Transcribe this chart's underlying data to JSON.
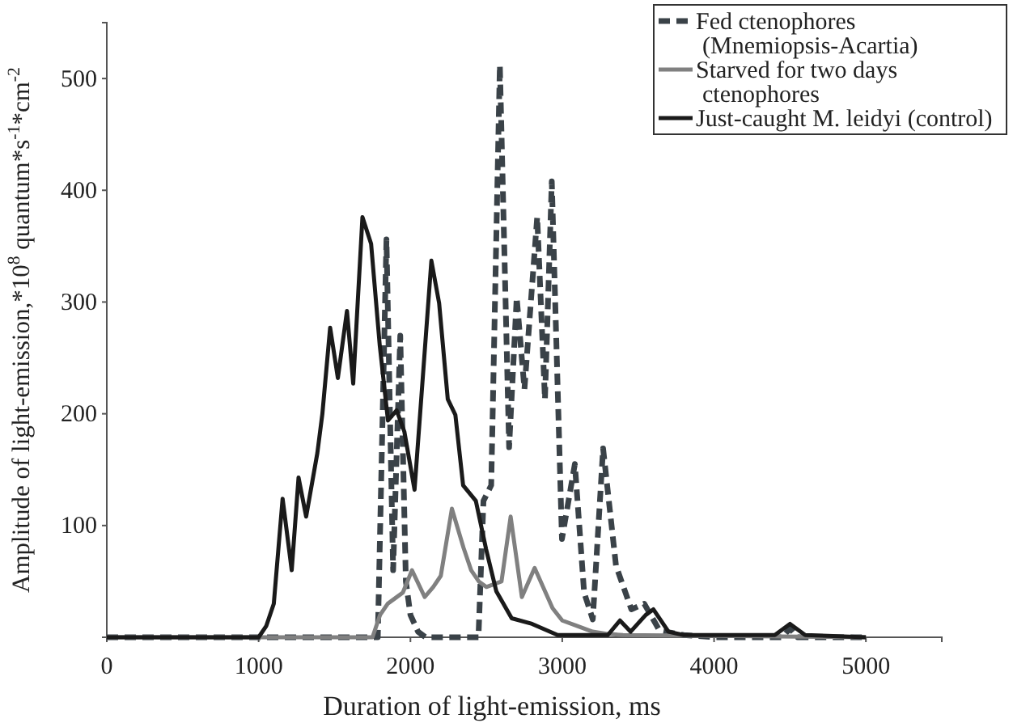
{
  "chart_data": {
    "type": "line",
    "xlabel": "Duration of light-emission, ms",
    "ylabel": "Amplitude of light-emission,*10$^{8}$ quantum*s$^{-1}$*cm$^{-2}$",
    "xlim": [
      0,
      5500
    ],
    "xticks": [
      0,
      1000,
      2000,
      3000,
      4000,
      5000
    ],
    "ylim": [
      0,
      550
    ],
    "yticks": [
      {
        "value": 0,
        "label": null
      },
      100,
      200,
      300,
      400,
      500
    ],
    "grid": false,
    "legend": "top right",
    "series": [
      {
        "name": "Fed ctenophores (Mnemiopsis-Acartia)",
        "color": "#3a4248",
        "line_style": "dashed",
        "x": [
          0,
          1000,
          1785,
          1842,
          1886,
          1933,
          1970,
          2000,
          2050,
          2100,
          2448,
          2481,
          2532,
          2589,
          2650,
          2700,
          2751,
          2785,
          2835,
          2886,
          2931,
          2998,
          3083,
          3144,
          3201,
          3269,
          3354,
          3455,
          3540,
          3641,
          3800,
          4000,
          4450,
          4500,
          4550,
          5000
        ],
        "values": [
          0,
          0,
          0,
          356,
          60,
          270,
          50,
          20,
          5,
          0,
          0,
          122,
          136,
          512,
          170,
          304,
          222,
          285,
          376,
          213,
          408,
          88,
          155,
          40,
          16,
          169,
          64,
          25,
          30,
          6,
          2,
          0,
          0,
          8,
          0,
          0
        ]
      },
      {
        "name": "Starved for two days ctenophores",
        "color": "#808080",
        "line_style": "solid",
        "x": [
          0,
          1000,
          1750,
          1800,
          1850,
          1900,
          1950,
          2010,
          2094,
          2150,
          2200,
          2273,
          2350,
          2400,
          2450,
          2500,
          2600,
          2660,
          2734,
          2818,
          2936,
          3000,
          3100,
          3200,
          3300,
          3400,
          5000
        ],
        "values": [
          0,
          0,
          0,
          20,
          30,
          35,
          40,
          60,
          36,
          45,
          55,
          115,
          80,
          60,
          50,
          45,
          50,
          108,
          36,
          62,
          26,
          15,
          10,
          5,
          3,
          2,
          0
        ]
      },
      {
        "name": "Just-caught M. leidyi (control)",
        "color": "#1a1a1a",
        "line_style": "solid",
        "x": [
          0,
          1000,
          1050,
          1100,
          1158,
          1218,
          1263,
          1313,
          1387,
          1420,
          1471,
          1522,
          1582,
          1623,
          1684,
          1741,
          1798,
          1852,
          1909,
          1960,
          2027,
          2138,
          2189,
          2246,
          2296,
          2347,
          2431,
          2498,
          2566,
          2667,
          2801,
          2970,
          3300,
          3380,
          3450,
          3550,
          3600,
          3700,
          3800,
          4400,
          4500,
          4600,
          5000
        ],
        "values": [
          0,
          0,
          10,
          30,
          124,
          60,
          143,
          108,
          165,
          200,
          277,
          232,
          292,
          227,
          376,
          352,
          261,
          194,
          203,
          184,
          132,
          337,
          299,
          213,
          199,
          136,
          122,
          79,
          41,
          17,
          12,
          2,
          2,
          15,
          5,
          20,
          25,
          5,
          2,
          2,
          12,
          2,
          0
        ]
      }
    ]
  }
}
